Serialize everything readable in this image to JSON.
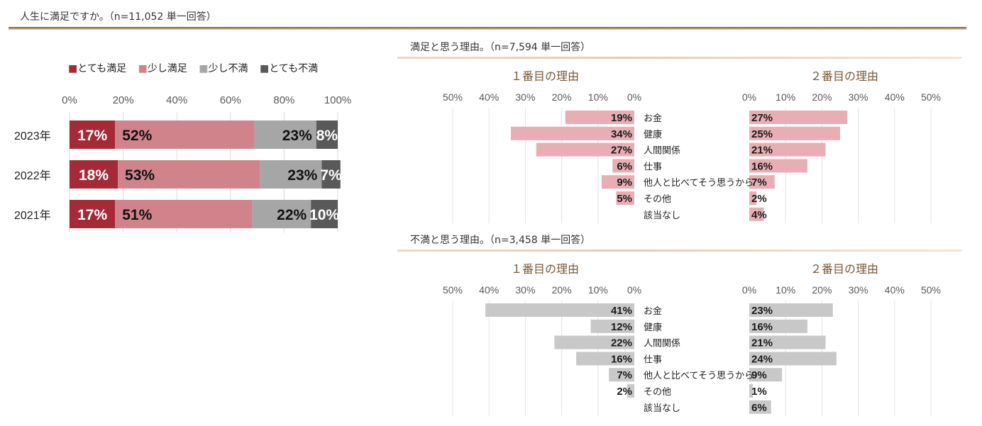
{
  "page": {
    "title": "人生に満足ですか。（n=11,052 単一回答）"
  },
  "colors": {
    "very_satisfied": "#a52a37",
    "somewhat_satisfied": "#d0838b",
    "somewhat_dissatisfied": "#a6a6a6",
    "very_dissatisfied": "#595959",
    "reason_pos": "#e8aeb4",
    "reason_neg": "#c8c8c8",
    "heading": "#7a5a3a"
  },
  "legend": [
    {
      "label": "■とても満足",
      "color": "#a52a37"
    },
    {
      "label": "■少し満足",
      "color": "#d0838b"
    },
    {
      "label": "■少し不満",
      "color": "#a6a6a6"
    },
    {
      "label": "■とても不満",
      "color": "#595959"
    }
  ],
  "satisfied_section": {
    "title": "満足と思う理由。（n=7,594 単一回答）",
    "first_heading": "１番目の理由",
    "second_heading": "２番目の理由"
  },
  "dissatisfied_section": {
    "title": "不満と思う理由。（n=3,458 単一回答）",
    "first_heading": "１番目の理由",
    "second_heading": "２番目の理由"
  },
  "chart_data": [
    {
      "type": "bar",
      "orientation": "horizontal-stacked-100",
      "categories": [
        "2023年",
        "2022年",
        "2021年"
      ],
      "series": [
        {
          "name": "とても満足",
          "values": [
            17,
            18,
            17
          ]
        },
        {
          "name": "少し満足",
          "values": [
            52,
            53,
            51
          ]
        },
        {
          "name": "少し不満",
          "values": [
            23,
            23,
            22
          ]
        },
        {
          "name": "とても不満",
          "values": [
            8,
            7,
            10
          ]
        }
      ],
      "value_labels": [
        [
          "17%",
          "52%",
          "23%",
          "8%"
        ],
        [
          "18%",
          "53%",
          "23%",
          "7%"
        ],
        [
          "17%",
          "51%",
          "22%",
          "10%"
        ]
      ],
      "xlim": [
        0,
        100
      ],
      "ticks": [
        "0%",
        "20%",
        "40%",
        "60%",
        "80%",
        "100%"
      ],
      "legend_position": "top"
    },
    {
      "type": "bar",
      "orientation": "butterfly",
      "categories": [
        "お金",
        "健康",
        "人間関係",
        "仕事",
        "他人と比べてそう思うから",
        "その他",
        "該当なし"
      ],
      "series": [
        {
          "name": "１番目の理由",
          "values": [
            19,
            34,
            27,
            6,
            9,
            5,
            0
          ]
        },
        {
          "name": "２番目の理由",
          "values": [
            27,
            25,
            21,
            16,
            7,
            2,
            4
          ]
        }
      ],
      "left_labels": [
        "19%",
        "34%",
        "27%",
        "6%",
        "9%",
        "5%",
        ""
      ],
      "right_labels": [
        "27%",
        "25%",
        "21%",
        "16%",
        "7%",
        "2%",
        "4%"
      ],
      "left_ticks": [
        "50%",
        "40%",
        "30%",
        "20%",
        "10%",
        "0%"
      ],
      "right_ticks": [
        "0%",
        "10%",
        "20%",
        "30%",
        "40%",
        "50%"
      ],
      "xlim": [
        0,
        50
      ]
    },
    {
      "type": "bar",
      "orientation": "butterfly",
      "categories": [
        "お金",
        "健康",
        "人間関係",
        "仕事",
        "他人と比べてそう思うから",
        "その他",
        "該当なし"
      ],
      "series": [
        {
          "name": "１番目の理由",
          "values": [
            41,
            12,
            22,
            16,
            7,
            2,
            0
          ]
        },
        {
          "name": "２番目の理由",
          "values": [
            23,
            16,
            21,
            24,
            9,
            1,
            6
          ]
        }
      ],
      "left_labels": [
        "41%",
        "12%",
        "22%",
        "16%",
        "7%",
        "2%",
        ""
      ],
      "right_labels": [
        "23%",
        "16%",
        "21%",
        "24%",
        "9%",
        "1%",
        "6%"
      ],
      "left_ticks": [
        "50%",
        "40%",
        "30%",
        "20%",
        "10%",
        "0%"
      ],
      "right_ticks": [
        "0%",
        "10%",
        "20%",
        "30%",
        "40%",
        "50%"
      ],
      "xlim": [
        0,
        50
      ]
    }
  ]
}
